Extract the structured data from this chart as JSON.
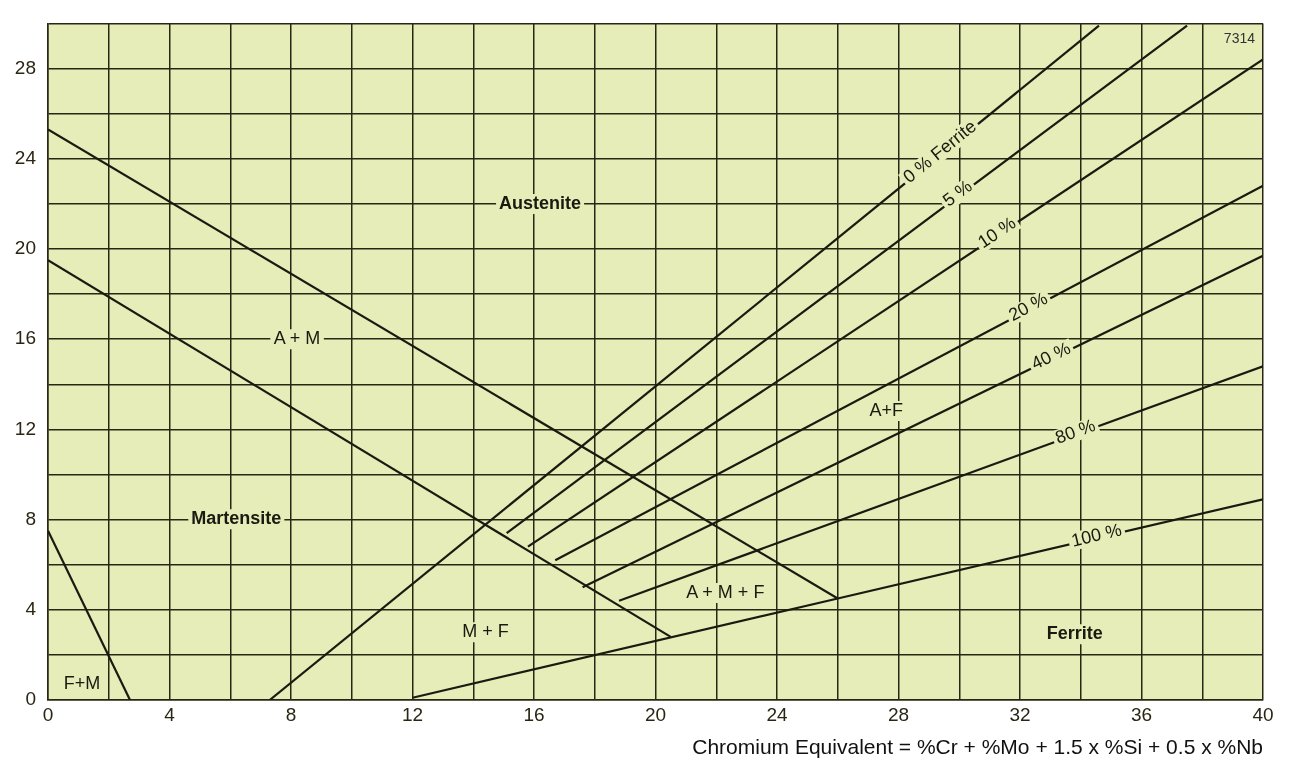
{
  "chart_data": {
    "type": "line",
    "xlabel": "Chromium Equivalent = %Cr + %Mo + 1.5 x %Si + 0.5 x %Nb",
    "xlim": [
      0,
      40
    ],
    "ylim": [
      0,
      30
    ],
    "xticks": [
      0,
      {
        "value": 2,
        "label": null
      },
      4,
      {
        "value": 6,
        "label": null
      },
      8,
      {
        "value": 10,
        "label": null
      },
      12,
      {
        "value": 14,
        "label": null
      },
      16,
      {
        "value": 18,
        "label": null
      },
      20,
      {
        "value": 22,
        "label": null
      },
      24,
      {
        "value": 26,
        "label": null
      },
      28,
      {
        "value": 30,
        "label": null
      },
      32,
      {
        "value": 34,
        "label": null
      },
      36,
      {
        "value": 38,
        "label": null
      },
      40
    ],
    "yticks": [
      0,
      {
        "value": 2,
        "label": null
      },
      4,
      {
        "value": 6,
        "label": null
      },
      8,
      {
        "value": 10,
        "label": null
      },
      12,
      {
        "value": 14,
        "label": null
      },
      16,
      {
        "value": 18,
        "label": null
      },
      20,
      {
        "value": 22,
        "label": null
      },
      24,
      {
        "value": 26,
        "label": null
      },
      28,
      {
        "value": 30,
        "label": null
      }
    ],
    "grid": true,
    "legend": false,
    "marker": "none",
    "line_style": "solid",
    "series": [
      {
        "color": "#1a1a10",
        "x": [
          0,
          26
        ],
        "values": [
          25.3,
          4.5
        ]
      },
      {
        "color": "#1a1a10",
        "x": [
          0,
          20.5
        ],
        "values": [
          19.5,
          2.8
        ]
      },
      {
        "color": "#1a1a10",
        "x": [
          0,
          2.7
        ],
        "values": [
          7.5,
          0
        ]
      },
      {
        "name": "0 % Ferrite",
        "color": "#1a1a10",
        "x": [
          7.3,
          34.6
        ],
        "values": [
          0,
          29.9
        ]
      },
      {
        "name": "5 %",
        "color": "#1a1a10",
        "x": [
          15.1,
          37.5
        ],
        "values": [
          7.4,
          29.9
        ]
      },
      {
        "name": "10 %",
        "color": "#1a1a10",
        "x": [
          15.8,
          40
        ],
        "values": [
          6.8,
          28.4
        ]
      },
      {
        "name": "20 %",
        "color": "#1a1a10",
        "x": [
          16.7,
          40
        ],
        "values": [
          6.2,
          22.8
        ]
      },
      {
        "name": "40 %",
        "color": "#1a1a10",
        "x": [
          17.6,
          40
        ],
        "values": [
          5.0,
          19.7
        ]
      },
      {
        "name": "80 %",
        "color": "#1a1a10",
        "x": [
          18.8,
          40
        ],
        "values": [
          4.4,
          14.8
        ]
      },
      {
        "name": "100 %",
        "color": "#1a1a10",
        "x": [
          12,
          26,
          40
        ],
        "values": [
          0.1,
          4.5,
          8.9
        ]
      }
    ],
    "annotations": [
      "Austenite",
      "A + M",
      "Martensite",
      "F+M",
      "M + F",
      "A + M + F",
      "A+F",
      "Ferrite",
      "7314"
    ]
  }
}
